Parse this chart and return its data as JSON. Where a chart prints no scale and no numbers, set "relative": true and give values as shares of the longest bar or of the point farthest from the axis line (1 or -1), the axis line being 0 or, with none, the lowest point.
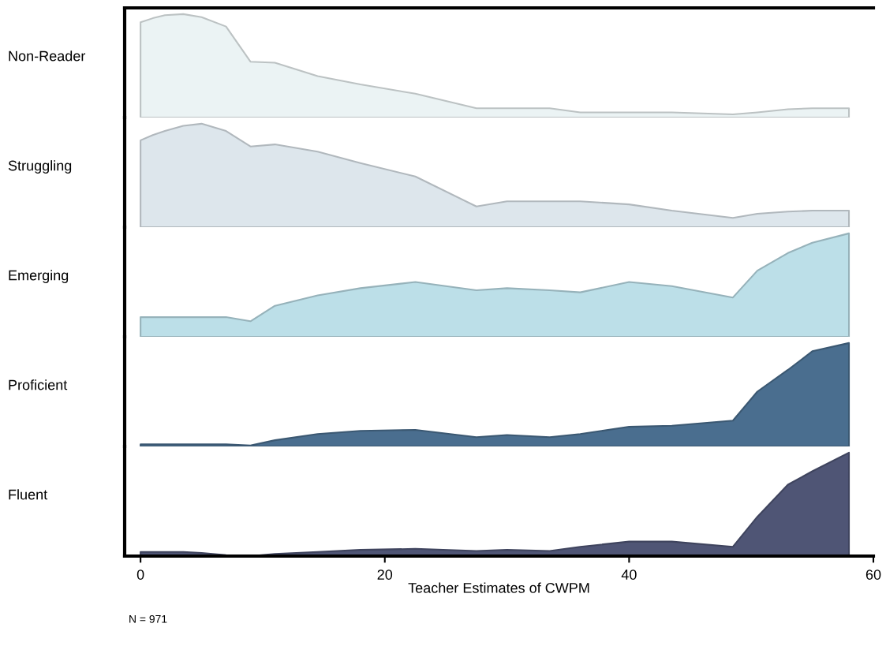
{
  "chart_data": [
    {
      "type": "area",
      "relative": true,
      "ylabel": "Non-Reader",
      "tick_labels": false,
      "xlim": [
        -1.3,
        60
      ],
      "x": [
        0,
        1,
        2,
        3.5,
        5,
        7,
        9,
        11,
        14.5,
        18,
        22.5,
        27.5,
        30,
        33.5,
        36,
        40,
        43.5,
        48.5,
        50.5,
        53,
        55,
        58
      ],
      "series": [
        {
          "color": "#ebf3f4",
          "values": [
            0.92,
            0.96,
            0.99,
            1,
            0.97,
            0.88,
            0.54,
            0.53,
            0.4,
            0.32,
            0.23,
            0.09,
            0.09,
            0.09,
            0.05,
            0.05,
            0.05,
            0.03,
            0.05,
            0.08,
            0.09,
            0.09
          ]
        }
      ]
    },
    {
      "type": "area",
      "relative": true,
      "ylabel": "Struggling",
      "tick_labels": false,
      "xlim": [
        -1.3,
        60
      ],
      "x": [
        0,
        1,
        2,
        3.5,
        5,
        7,
        9,
        11,
        14.5,
        18,
        22.5,
        27.5,
        30,
        33.5,
        36,
        40,
        43.5,
        48.5,
        50.5,
        53,
        55,
        58
      ],
      "series": [
        {
          "color": "#dde6ec",
          "values": [
            0.84,
            0.89,
            0.93,
            0.98,
            1,
            0.93,
            0.78,
            0.8,
            0.73,
            0.62,
            0.49,
            0.2,
            0.25,
            0.25,
            0.25,
            0.22,
            0.16,
            0.09,
            0.13,
            0.15,
            0.16,
            0.16
          ]
        }
      ]
    },
    {
      "type": "area",
      "relative": true,
      "ylabel": "Emerging",
      "tick_labels": false,
      "xlim": [
        -1.3,
        60
      ],
      "x": [
        0,
        1,
        2,
        3.5,
        5,
        7,
        9,
        11,
        14.5,
        18,
        22.5,
        27.5,
        30,
        33.5,
        36,
        40,
        43.5,
        48.5,
        50.5,
        53,
        55,
        58
      ],
      "series": [
        {
          "color": "#bcdfe8",
          "values": [
            0.19,
            0.19,
            0.19,
            0.19,
            0.19,
            0.19,
            0.15,
            0.3,
            0.4,
            0.47,
            0.53,
            0.45,
            0.47,
            0.45,
            0.43,
            0.53,
            0.49,
            0.38,
            0.64,
            0.81,
            0.91,
            1
          ]
        }
      ]
    },
    {
      "type": "area",
      "relative": true,
      "ylabel": "Proficient",
      "tick_labels": false,
      "xlim": [
        -1.3,
        60
      ],
      "x": [
        0,
        1,
        2,
        3.5,
        5,
        7,
        9,
        11,
        14.5,
        18,
        22.5,
        27.5,
        30,
        33.5,
        36,
        40,
        43.5,
        48.5,
        50.5,
        53,
        55,
        58
      ],
      "series": [
        {
          "color": "#4a6e8f",
          "values": [
            0.02,
            0.02,
            0.02,
            0.02,
            0.02,
            0.02,
            0.01,
            0.06,
            0.12,
            0.15,
            0.16,
            0.09,
            0.11,
            0.09,
            0.12,
            0.19,
            0.2,
            0.25,
            0.53,
            0.74,
            0.92,
            1
          ]
        }
      ]
    },
    {
      "type": "area",
      "relative": true,
      "ylabel": "Fluent",
      "tick_labels": "x",
      "xlabel": "Teacher Estimates of CWPM",
      "annotations": [
        "N = 971"
      ],
      "xlim": [
        -1.3,
        60
      ],
      "xticks": [
        0,
        20,
        40,
        60
      ],
      "x": [
        0,
        1,
        2,
        3.5,
        5,
        7,
        9,
        11,
        14.5,
        18,
        22.5,
        27.5,
        30,
        33.5,
        36,
        40,
        43.5,
        48.5,
        50.5,
        53,
        55,
        58
      ],
      "series": [
        {
          "color": "#4f5575",
          "values": [
            0.04,
            0.04,
            0.04,
            0.04,
            0.03,
            0.01,
            0,
            0.02,
            0.04,
            0.06,
            0.07,
            0.05,
            0.06,
            0.05,
            0.09,
            0.14,
            0.14,
            0.09,
            0.38,
            0.69,
            0.82,
            1
          ]
        }
      ]
    }
  ]
}
